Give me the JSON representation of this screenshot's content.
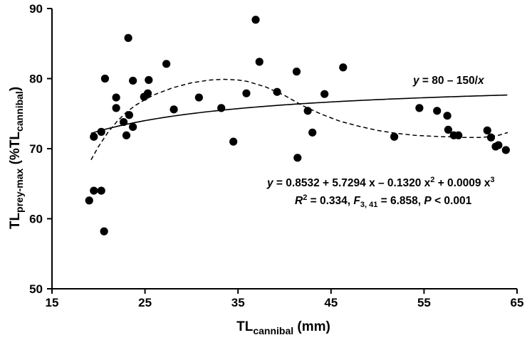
{
  "chart_data": {
    "type": "scatter",
    "xlabel": {
      "main": "TL",
      "sub": "cannibal",
      "unit": " (mm)"
    },
    "ylabel": {
      "main": "TL",
      "sub": "prey-max",
      "paren_open": " (%TL",
      "sub2": "cannibal",
      "paren_close": ")"
    },
    "xlim": [
      15,
      65
    ],
    "ylim": [
      50,
      90
    ],
    "xticks": [
      "15",
      "25",
      "35",
      "45",
      "55",
      "65"
    ],
    "yticks": [
      "50",
      "60",
      "70",
      "80",
      "90"
    ],
    "grid": false,
    "points": [
      {
        "x": 19.0,
        "y": 62.6
      },
      {
        "x": 19.5,
        "y": 64.0
      },
      {
        "x": 19.5,
        "y": 71.7
      },
      {
        "x": 20.3,
        "y": 64.0
      },
      {
        "x": 20.3,
        "y": 72.4
      },
      {
        "x": 20.6,
        "y": 58.2
      },
      {
        "x": 20.7,
        "y": 80.0
      },
      {
        "x": 21.9,
        "y": 77.3
      },
      {
        "x": 21.9,
        "y": 75.8
      },
      {
        "x": 22.7,
        "y": 73.8
      },
      {
        "x": 23.0,
        "y": 71.9
      },
      {
        "x": 23.2,
        "y": 85.8
      },
      {
        "x": 23.3,
        "y": 74.8
      },
      {
        "x": 23.7,
        "y": 73.1
      },
      {
        "x": 23.7,
        "y": 79.7
      },
      {
        "x": 24.9,
        "y": 77.4
      },
      {
        "x": 25.3,
        "y": 77.9
      },
      {
        "x": 25.4,
        "y": 79.8
      },
      {
        "x": 27.3,
        "y": 82.1
      },
      {
        "x": 28.1,
        "y": 75.6
      },
      {
        "x": 30.8,
        "y": 77.3
      },
      {
        "x": 33.2,
        "y": 75.8
      },
      {
        "x": 34.5,
        "y": 71.0
      },
      {
        "x": 35.9,
        "y": 77.9
      },
      {
        "x": 36.9,
        "y": 88.4
      },
      {
        "x": 37.3,
        "y": 82.4
      },
      {
        "x": 39.2,
        "y": 78.1
      },
      {
        "x": 41.3,
        "y": 81.0
      },
      {
        "x": 41.4,
        "y": 68.7
      },
      {
        "x": 42.5,
        "y": 75.4
      },
      {
        "x": 43.0,
        "y": 72.3
      },
      {
        "x": 44.3,
        "y": 77.8
      },
      {
        "x": 46.3,
        "y": 81.6
      },
      {
        "x": 51.8,
        "y": 71.7
      },
      {
        "x": 54.5,
        "y": 75.8
      },
      {
        "x": 56.4,
        "y": 75.4
      },
      {
        "x": 57.5,
        "y": 74.7
      },
      {
        "x": 57.6,
        "y": 72.7
      },
      {
        "x": 58.2,
        "y": 71.9
      },
      {
        "x": 58.7,
        "y": 71.9
      },
      {
        "x": 61.8,
        "y": 72.6
      },
      {
        "x": 62.2,
        "y": 71.6
      },
      {
        "x": 62.7,
        "y": 70.3
      },
      {
        "x": 63.0,
        "y": 70.5
      },
      {
        "x": 63.8,
        "y": 69.8
      }
    ],
    "curves": [
      {
        "kind": "solid",
        "function": "80 - 150/x",
        "x_range": [
          19.2,
          64
        ]
      },
      {
        "kind": "dashed",
        "function": "cubic: 0.8532 + 5.7294x - 0.1320x^2 + 0.0009x^3",
        "x_range": [
          19.2,
          64
        ],
        "path": "digitized",
        "x": [
          19.2,
          20,
          21,
          22,
          23,
          24,
          25,
          26,
          28,
          30,
          32,
          33.5,
          35,
          36,
          38,
          40,
          42,
          44,
          46,
          48,
          50,
          52,
          54,
          55.5,
          57,
          58,
          59,
          60,
          61,
          62,
          63,
          64
        ],
        "y": [
          68.4,
          70.3,
          72.3,
          73.9,
          75.2,
          76.2,
          77.0,
          77.7,
          78.7,
          79.4,
          79.8,
          79.9,
          79.8,
          79.6,
          78.8,
          77.6,
          76.1,
          74.9,
          73.9,
          73.2,
          72.6,
          72.2,
          71.9,
          71.8,
          71.7,
          71.7,
          71.6,
          71.6,
          71.6,
          71.7,
          71.9,
          72.3
        ]
      }
    ],
    "annotations": {
      "simple_eq": {
        "y_var": "y",
        "rhs": " = 80 – 150/",
        "x_var": "x"
      },
      "cubic_eq": {
        "y_var": "y",
        "rhs": " = 0.8532 + 5.7294 x  – 0.1320 x",
        "e1": "2",
        "mid": " + 0.0009 x",
        "e2": "3"
      },
      "stats": {
        "r": "R",
        "r_exp": "2",
        "r_val": " = 0.334, ",
        "f": "F",
        "f_sub": "3, 41",
        "f_val": " = 6.858, ",
        "p": "P",
        "p_val": " < 0.001"
      }
    }
  }
}
